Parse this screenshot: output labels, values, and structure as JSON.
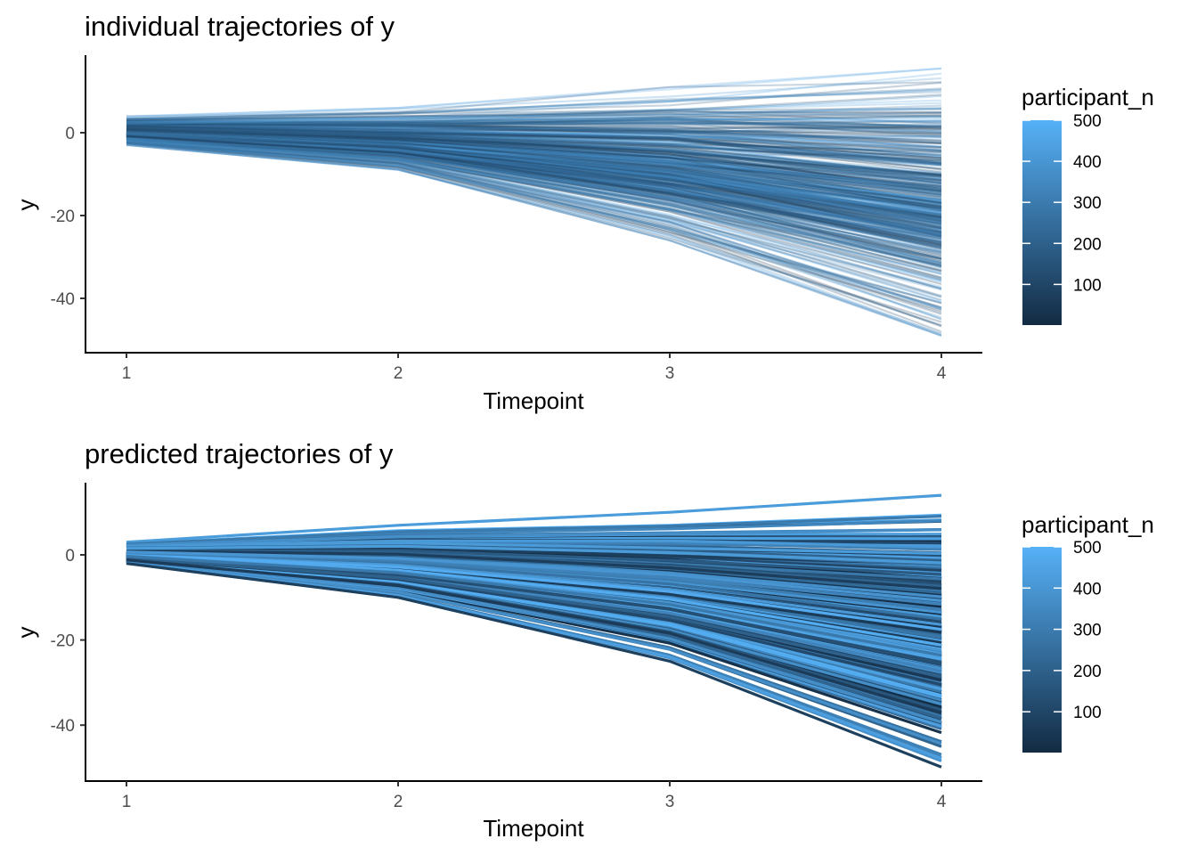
{
  "chart_data": [
    {
      "type": "line",
      "title": "individual trajectories of y",
      "xlabel": "Timepoint",
      "ylabel": "y",
      "x": [
        1,
        2,
        3,
        4
      ],
      "xticks": [
        "1",
        "2",
        "3",
        "4"
      ],
      "ylim": [
        -52,
        17
      ],
      "yticks": [
        0,
        -20,
        -40
      ],
      "ytick_labels": [
        "0",
        "-20",
        "-40"
      ],
      "grid": false,
      "legend": {
        "title": "participant_n",
        "placement": "right",
        "type": "colorbar",
        "range": [
          1,
          500
        ],
        "ticks": [
          500,
          400,
          300,
          200,
          100
        ],
        "tick_labels": [
          "500",
          "400",
          "300",
          "200",
          "100"
        ],
        "color_low": "#132B43",
        "color_high": "#56B1F7"
      },
      "line_alpha": 0.25,
      "series_count": 500,
      "series_spread": {
        "mean": [
          0,
          -3,
          -9,
          -18
        ],
        "max": [
          4,
          6,
          11,
          15.5
        ],
        "min": [
          -3,
          -9,
          -26,
          -49
        ]
      }
    },
    {
      "type": "line",
      "title": "predicted trajectories of y",
      "xlabel": "Timepoint",
      "ylabel": "y",
      "x": [
        1,
        2,
        3,
        4
      ],
      "xticks": [
        "1",
        "2",
        "3",
        "4"
      ],
      "ylim": [
        -52,
        17
      ],
      "yticks": [
        0,
        -20,
        -40
      ],
      "ytick_labels": [
        "0",
        "-20",
        "-40"
      ],
      "grid": false,
      "legend": {
        "title": "participant_n",
        "placement": "right",
        "type": "colorbar",
        "range": [
          1,
          500
        ],
        "ticks": [
          500,
          400,
          300,
          200,
          100
        ],
        "tick_labels": [
          "500",
          "400",
          "300",
          "200",
          "100"
        ],
        "color_low": "#132B43",
        "color_high": "#56B1F7"
      },
      "line_alpha": 1,
      "series_count": 500,
      "series_spread": {
        "mean": [
          0,
          -3,
          -9,
          -18
        ],
        "max": [
          3,
          7,
          10,
          14
        ],
        "min": [
          -2,
          -10,
          -25,
          -50
        ]
      }
    }
  ]
}
